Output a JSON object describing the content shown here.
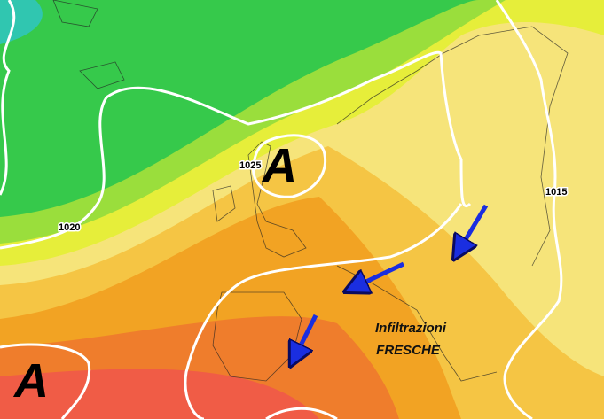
{
  "map": {
    "pressure_centers": [
      {
        "label": "A"
      },
      {
        "label": "A"
      }
    ],
    "isobar_labels": [
      "1025",
      "1020",
      "1015"
    ],
    "annotation": {
      "line1": "Infiltrazioni",
      "line2": "FRESCHE"
    }
  }
}
